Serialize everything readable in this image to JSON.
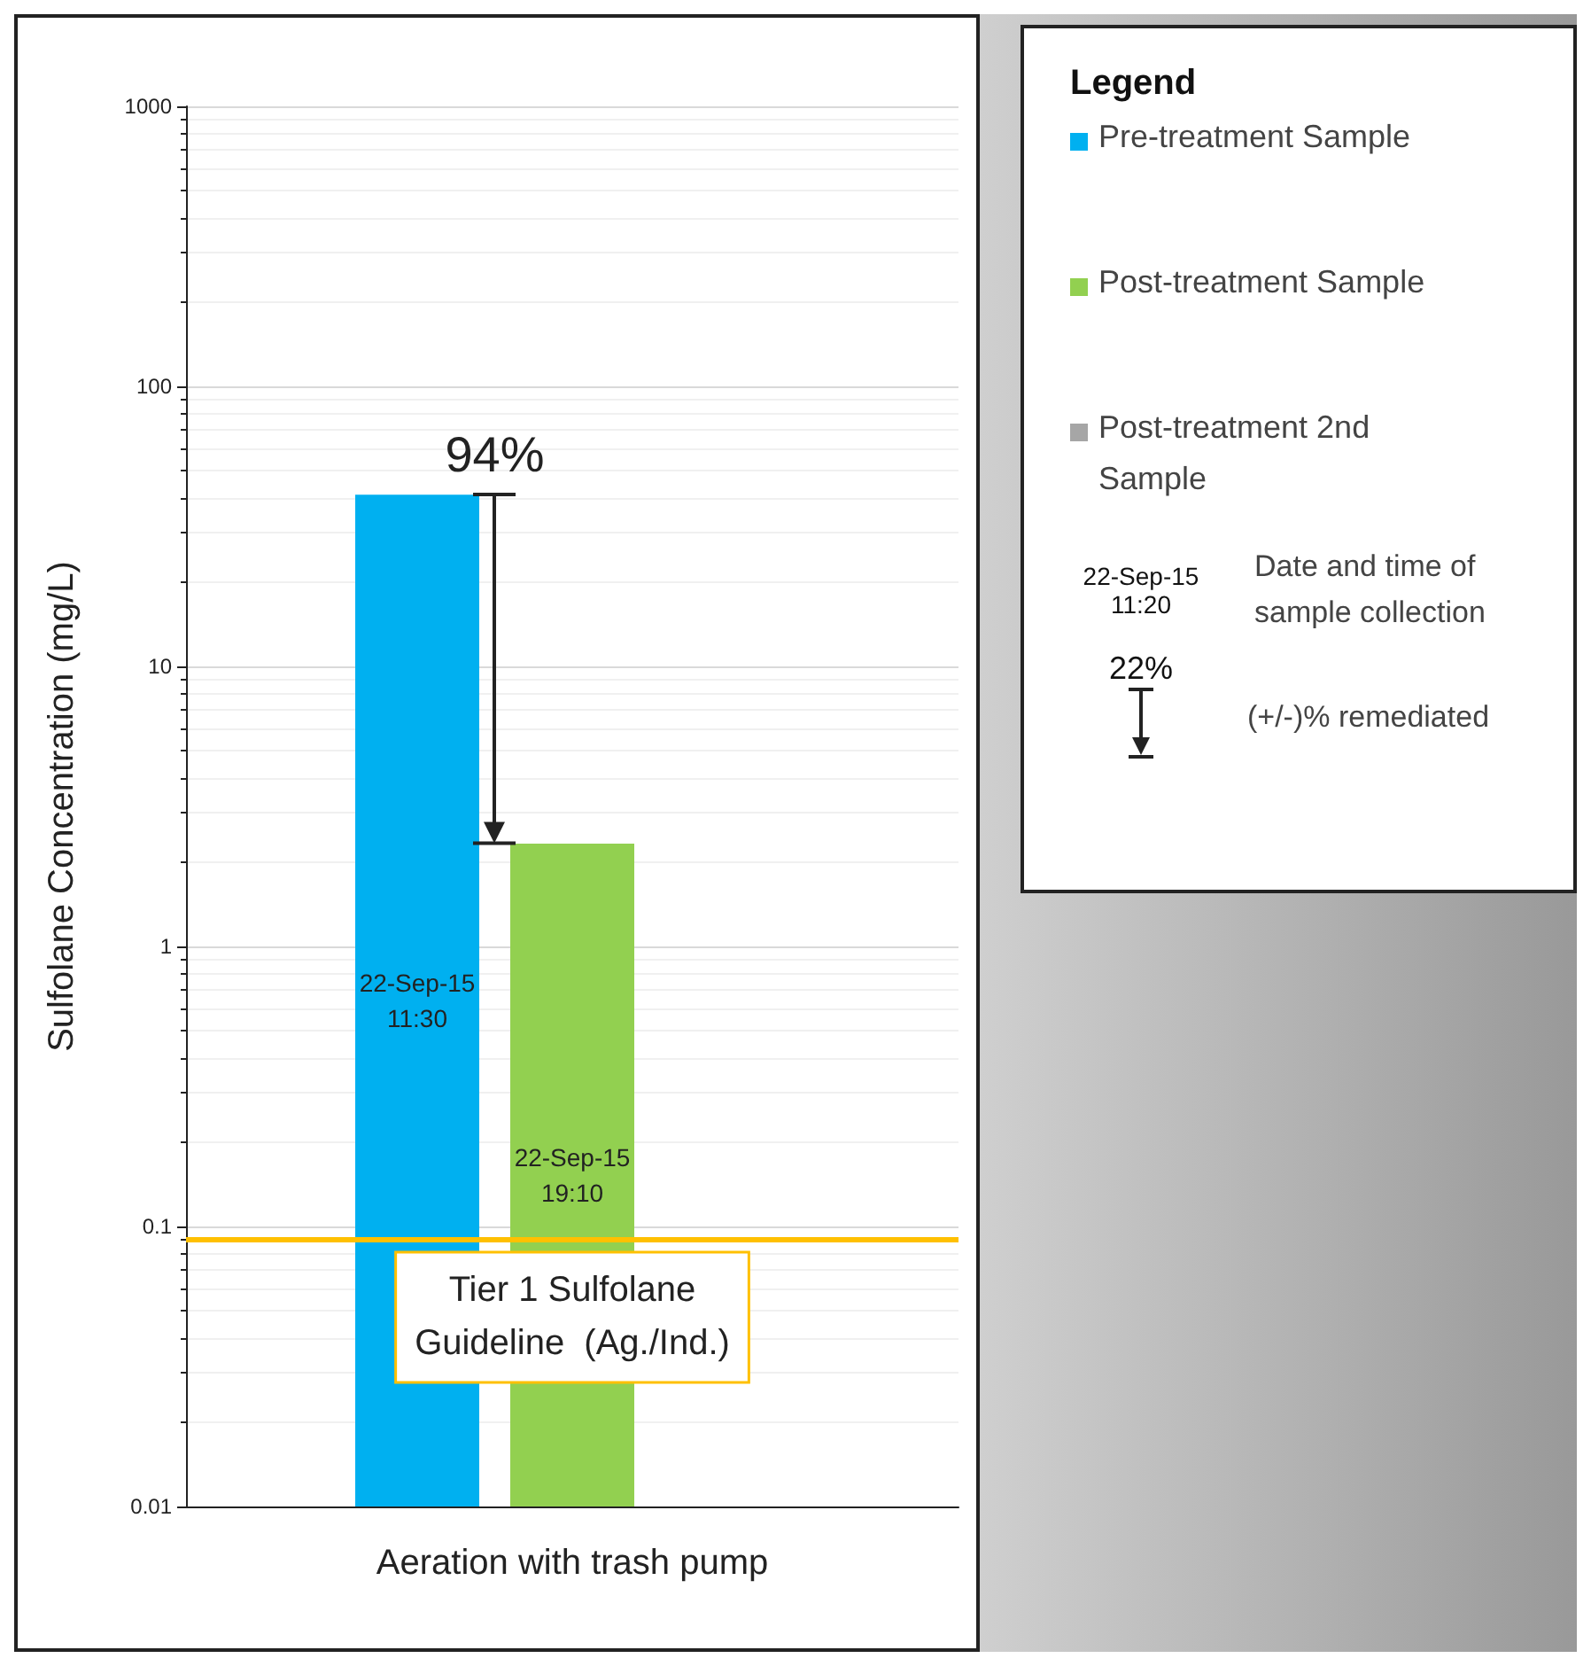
{
  "chart_data": {
    "type": "bar",
    "ylabel": "Sulfolane Concentration (mg/L)",
    "categories": [
      "Aeration with trash pump"
    ],
    "series": [
      {
        "name": "Pre-treatment Sample",
        "color": "#00b0f0",
        "values": [
          41
        ],
        "value_labels": [
          "22-Sep-15\n11:30"
        ]
      },
      {
        "name": "Post-treatment Sample",
        "color": "#92d050",
        "values": [
          2.33
        ],
        "value_labels": [
          "22-Sep-15\n19:10"
        ]
      },
      {
        "name": "Post-treatment 2nd\nSample",
        "color": "#a6a6a6",
        "values": [
          null
        ]
      }
    ],
    "log": "y",
    "ylim": [
      0.01,
      1000
    ],
    "yticks": [
      0.01,
      0.1,
      1,
      10,
      100,
      1000
    ],
    "grid": "y",
    "ref_lines": [
      {
        "axis": "y",
        "value": 0.09,
        "label": "Tier 1 Sulfolane\nGuideline  (Ag./Ind.)",
        "color": "#ffc000"
      }
    ],
    "legend": "right",
    "legend_title": "Legend",
    "annotations": [
      "94%",
      "22-Sep-15\n11:20",
      "Date and time of\nsample collection",
      "22%",
      "(+/-)% remediated"
    ]
  }
}
